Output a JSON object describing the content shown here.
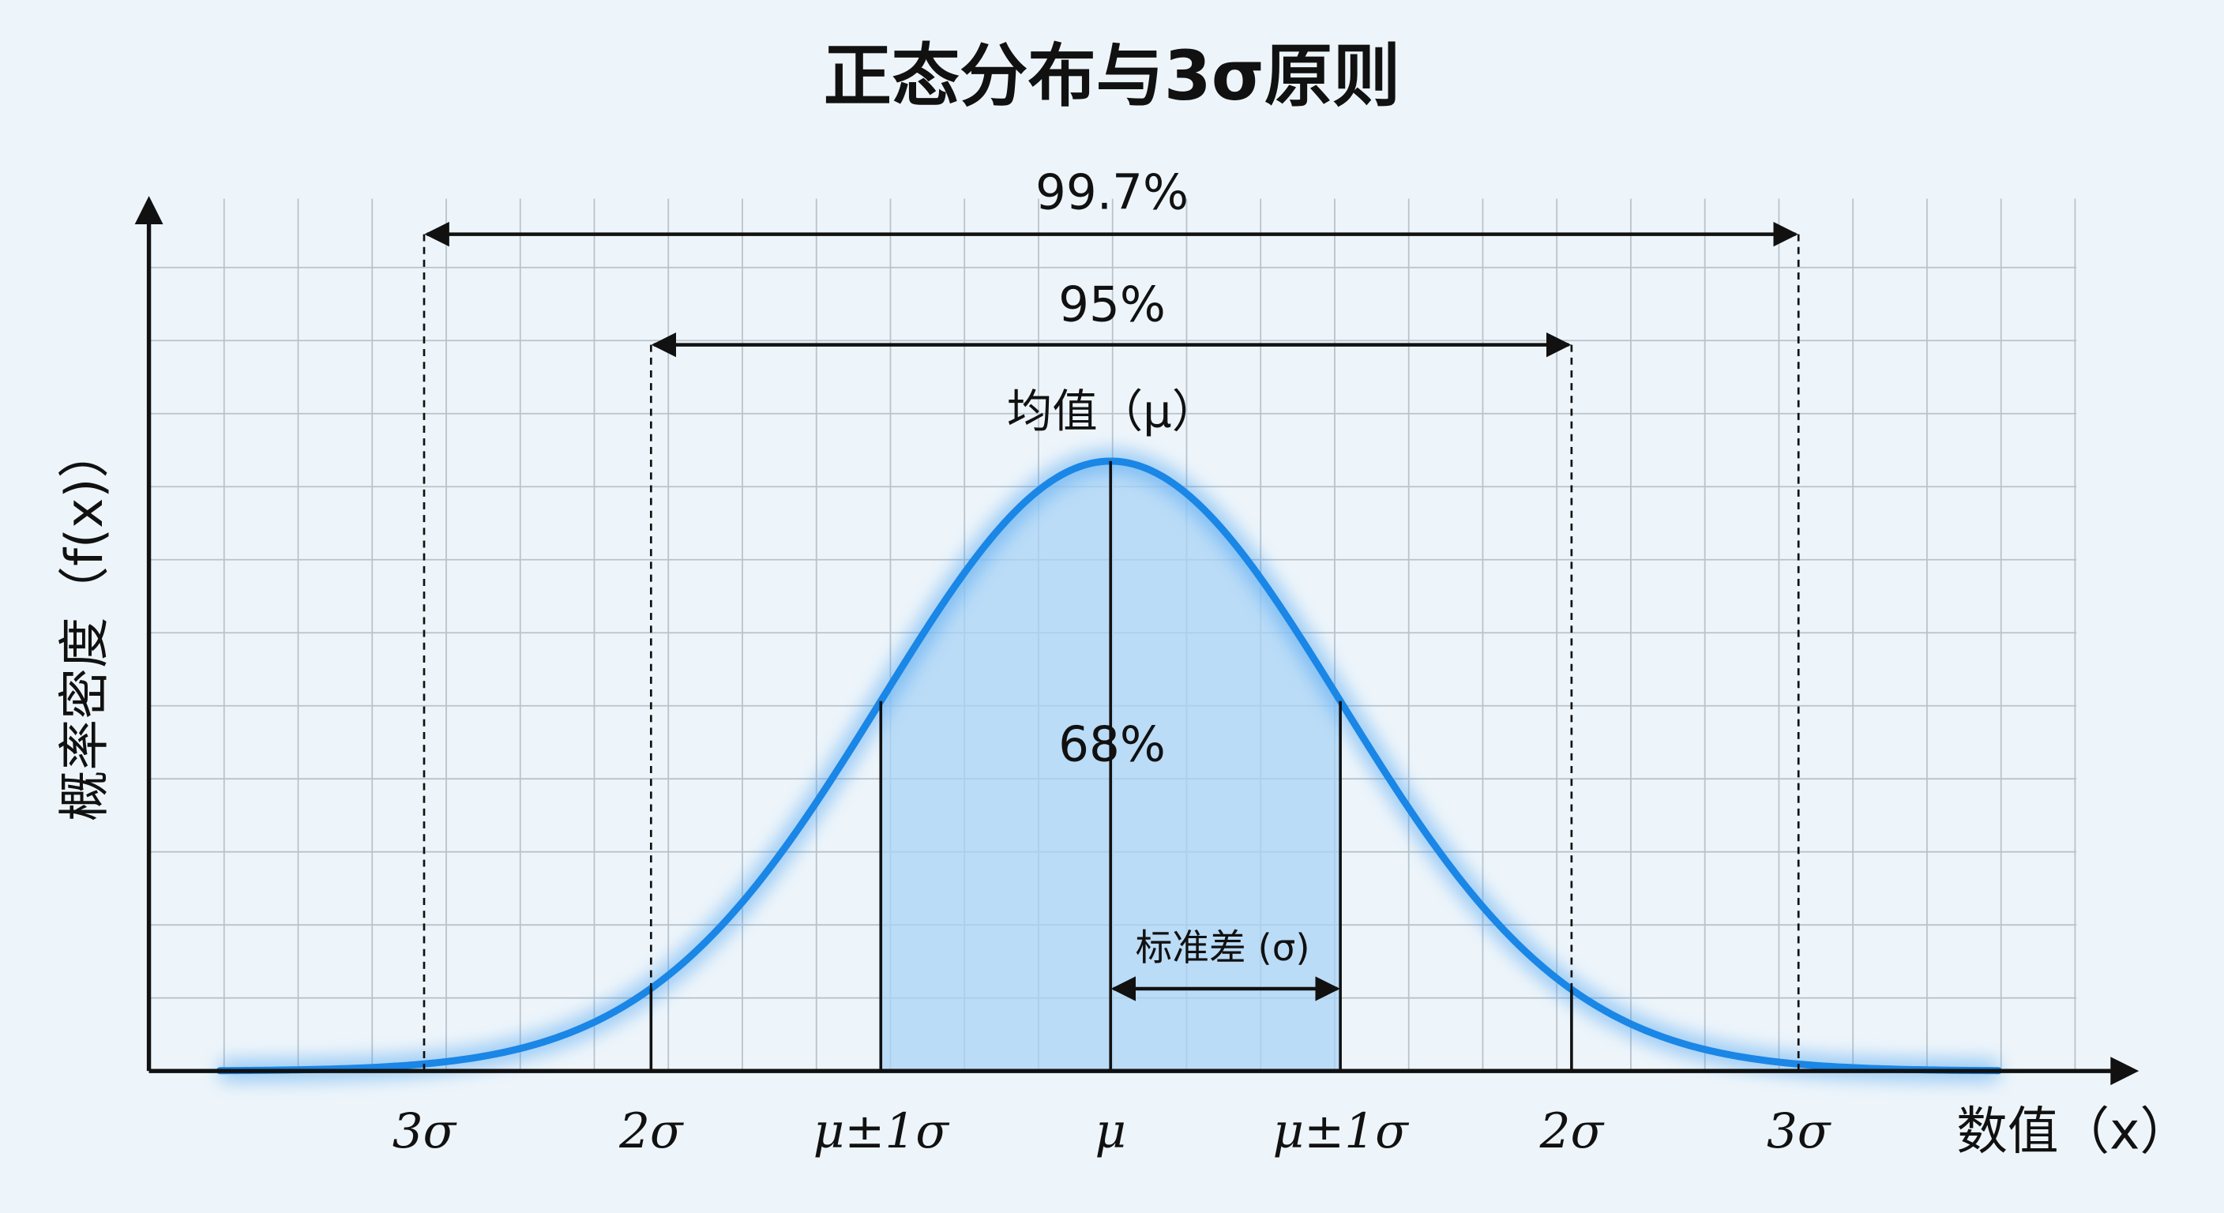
{
  "title": "正态分布与3σ原则",
  "y_axis_label": "概率密度（f(x)）",
  "x_axis_label": "数值（x）",
  "x_ticks": [
    "3σ",
    "2σ",
    "μ±1σ",
    "μ",
    "μ±1σ",
    "2σ",
    "3σ"
  ],
  "annotations": {
    "range_3sigma": "99.7%",
    "range_2sigma": "95%",
    "mean": "均值（μ）",
    "range_1sigma": "68%",
    "std": "标准差 (σ)"
  }
}
